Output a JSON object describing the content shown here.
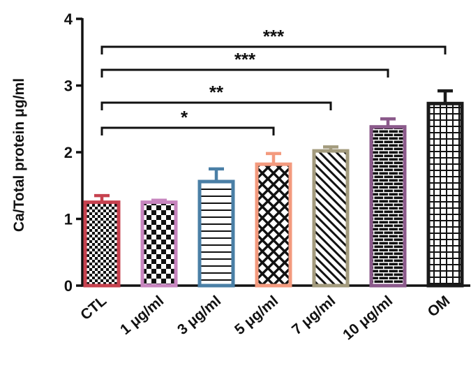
{
  "chart_data": {
    "type": "bar",
    "title": "",
    "xlabel": "",
    "ylabel": "Ca/Total protein μg/ml",
    "ylim": [
      0,
      4
    ],
    "yticks": [
      0,
      1,
      2,
      3,
      4
    ],
    "grid": false,
    "categories": [
      "CTL",
      "1 μg/ml",
      "3 μg/ml",
      "5 μg/ml",
      "7 μg/ml",
      "10 μg/ml",
      "OM"
    ],
    "values": [
      1.25,
      1.25,
      1.56,
      1.82,
      2.02,
      2.38,
      2.73
    ],
    "errors": [
      0.1,
      0.03,
      0.19,
      0.16,
      0.06,
      0.12,
      0.19
    ],
    "bar_colors": [
      "#c6424f",
      "#c785bf",
      "#4a7fa6",
      "#f39a7e",
      "#a39b7d",
      "#8b5a8b",
      "#1a1a1a"
    ],
    "patterns": [
      "checker-small",
      "checker-large",
      "horizontal",
      "crosshatch",
      "diagonal",
      "brick",
      "grid"
    ],
    "significance": [
      {
        "from": "CTL",
        "to": "5 μg/ml",
        "label": "*"
      },
      {
        "from": "CTL",
        "to": "7 μg/ml",
        "label": "**"
      },
      {
        "from": "CTL",
        "to": "10 μg/ml",
        "label": "***"
      },
      {
        "from": "CTL",
        "to": "OM",
        "label": "***"
      }
    ]
  }
}
